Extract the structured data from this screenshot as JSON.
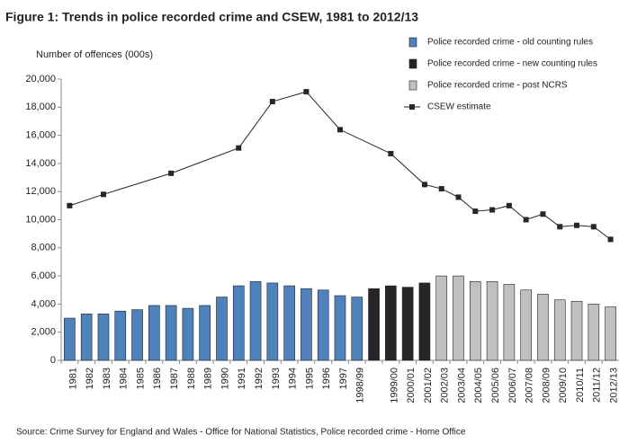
{
  "chart_data": {
    "type": "bar",
    "title": "Figure 1: Trends in police recorded crime and CSEW, 1981 to 2012/13",
    "y_label": "Number of offences (000s)",
    "source": "Source: Crime Survey for England and Wales - Office for National Statistics, Police recorded crime - Home Office",
    "categories": [
      "1981",
      "1982",
      "1983",
      "1984",
      "1985",
      "1986",
      "1987",
      "1988",
      "1989",
      "1990",
      "1991",
      "1992",
      "1993",
      "1994",
      "1995",
      "1996",
      "1997",
      "1998/99",
      null,
      "1999/00",
      "2000/01",
      "2001/02",
      "2002/03",
      "2003/04",
      "2004/05",
      "2005/06",
      "2006/07",
      "2007/08",
      "2008/09",
      "2009/10",
      "2010/11",
      "2011/12",
      "2012/13"
    ],
    "series": [
      {
        "name": "Police recorded crime - old counting rules",
        "color": "#4f81bd",
        "kind": "bar",
        "values": [
          3000,
          3300,
          3300,
          3500,
          3600,
          3900,
          3900,
          3700,
          3900,
          4500,
          5300,
          5600,
          5500,
          5300,
          5100,
          5000,
          4600,
          4500,
          null,
          null,
          null,
          null,
          null,
          null,
          null,
          null,
          null,
          null,
          null,
          null,
          null,
          null,
          null
        ]
      },
      {
        "name": "Police recorded crime - new counting rules",
        "color": "#262626",
        "kind": "bar",
        "values": [
          null,
          null,
          null,
          null,
          null,
          null,
          null,
          null,
          null,
          null,
          null,
          null,
          null,
          null,
          null,
          null,
          null,
          null,
          5100,
          5300,
          5200,
          5500,
          null,
          null,
          null,
          null,
          null,
          null,
          null,
          null,
          null,
          null,
          null
        ]
      },
      {
        "name": "Police recorded crime - post NCRS",
        "color": "#c0c0c0",
        "kind": "bar",
        "values": [
          null,
          null,
          null,
          null,
          null,
          null,
          null,
          null,
          null,
          null,
          null,
          null,
          null,
          null,
          null,
          null,
          null,
          null,
          null,
          null,
          null,
          null,
          6000,
          6000,
          5600,
          5600,
          5400,
          5000,
          4700,
          4300,
          4200,
          4000,
          3800
        ]
      },
      {
        "name": "CSEW estimate",
        "color": "#262626",
        "kind": "line",
        "values": [
          11000,
          null,
          11800,
          null,
          null,
          null,
          13300,
          null,
          null,
          null,
          15100,
          null,
          18400,
          null,
          19100,
          null,
          16400,
          null,
          null,
          14700,
          null,
          12500,
          12200,
          11600,
          10600,
          10700,
          11000,
          10000,
          10400,
          9500,
          9600,
          9500,
          8600
        ]
      }
    ],
    "ylim": [
      0,
      20000
    ],
    "yticks": [
      0,
      {
        "value": 2000,
        "label": "2,000"
      },
      {
        "value": 4000,
        "label": "4,000"
      },
      {
        "value": 6000,
        "label": "6,000"
      },
      {
        "value": 8000,
        "label": "8,000"
      },
      {
        "value": 10000,
        "label": "10,000"
      },
      {
        "value": 12000,
        "label": "12,000"
      },
      {
        "value": 14000,
        "label": "14,000"
      },
      {
        "value": 16000,
        "label": "16,000"
      },
      {
        "value": 18000,
        "label": "18,000"
      },
      {
        "value": 20000,
        "label": "20,000"
      }
    ]
  }
}
